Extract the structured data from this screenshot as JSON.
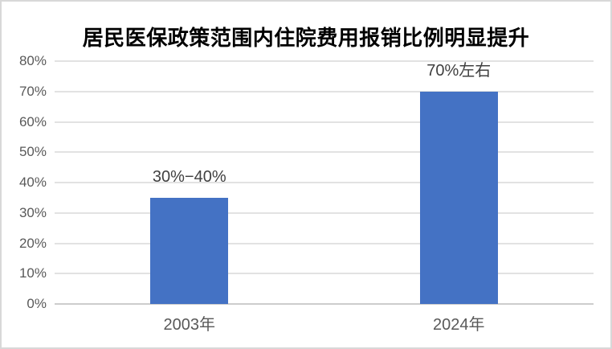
{
  "chart_data": {
    "type": "bar",
    "title": "居民医保政策范围内住院费用报销比例明显提升",
    "categories": [
      "2003年",
      "2024年"
    ],
    "values": [
      35,
      70
    ],
    "data_labels": [
      "30%−40%",
      "70%左右"
    ],
    "xlabel": "",
    "ylabel": "",
    "ylim": [
      0,
      80
    ],
    "ytick_step": 10,
    "yticks": [
      "0%",
      "10%",
      "20%",
      "30%",
      "40%",
      "50%",
      "60%",
      "70%",
      "80%"
    ],
    "grid": true,
    "legend_position": "none",
    "colors": {
      "bar": "#4472C4",
      "gridline": "#e2e2e2",
      "axis_line": "#cdcdcd",
      "tick_label": "#595959",
      "data_label": "#404040",
      "title": "#000000"
    }
  }
}
